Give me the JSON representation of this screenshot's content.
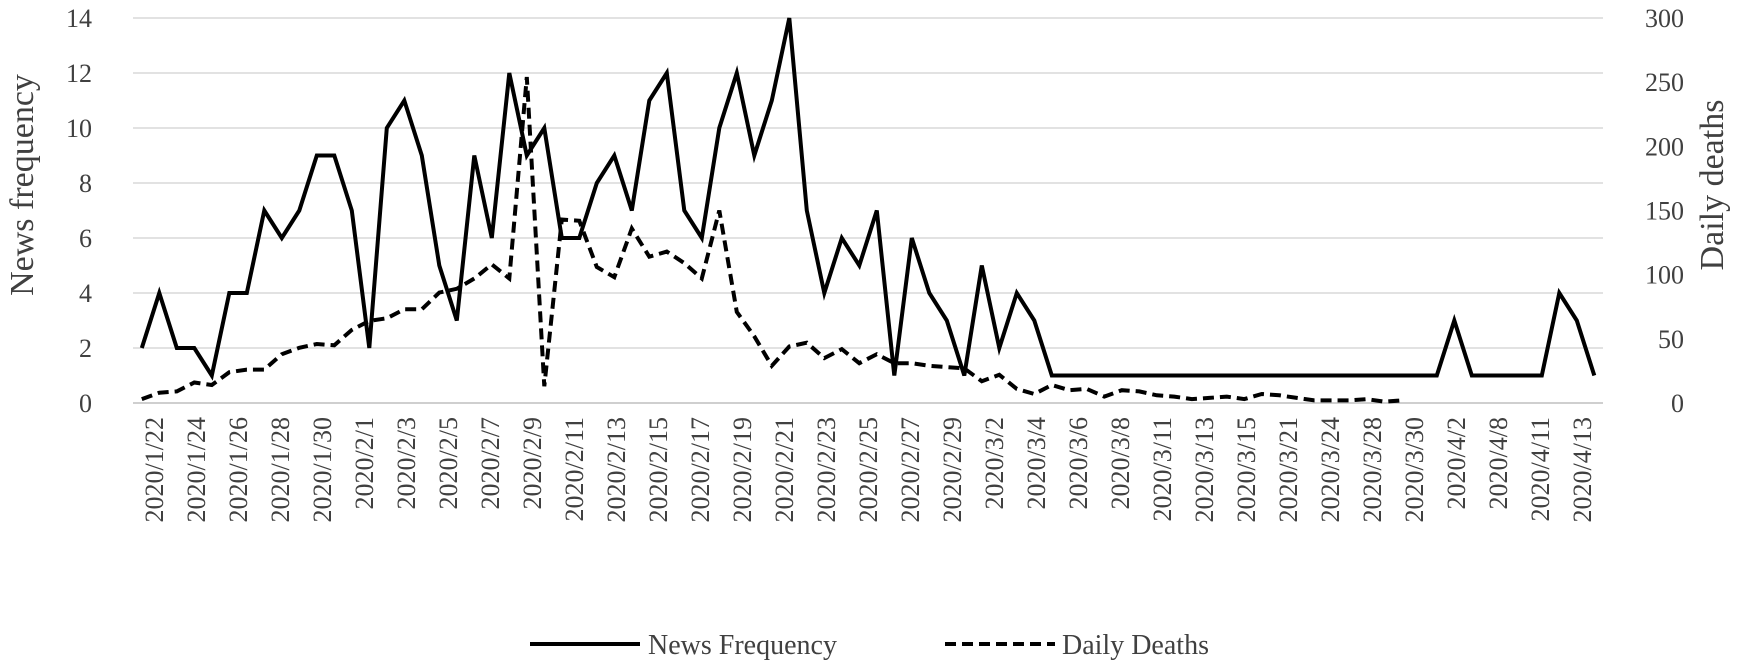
{
  "chart_data": {
    "type": "line",
    "ylabel_left": "News frequency",
    "ylabel_right": "Daily deaths",
    "ylim_left": [
      0,
      14
    ],
    "ylim_right": [
      0,
      300
    ],
    "yticks_left": [
      "0",
      "2",
      "4",
      "6",
      "8",
      "10",
      "12",
      "14"
    ],
    "yticks_right": [
      "0",
      "50",
      "100",
      "150",
      "200",
      "250",
      "300"
    ],
    "x_tick_labels": [
      "2020/1/22",
      "2020/1/24",
      "2020/1/26",
      "2020/1/28",
      "2020/1/30",
      "2020/2/1",
      "2020/2/3",
      "2020/2/5",
      "2020/2/7",
      "2020/2/9",
      "2020/2/11",
      "2020/2/13",
      "2020/2/15",
      "2020/2/17",
      "2020/2/19",
      "2020/2/21",
      "2020/2/23",
      "2020/2/25",
      "2020/2/27",
      "2020/2/29",
      "2020/3/2",
      "2020/3/4",
      "2020/3/6",
      "2020/3/8",
      "2020/3/11",
      "2020/3/13",
      "2020/3/15",
      "2020/3/21",
      "2020/3/24",
      "2020/3/28",
      "2020/3/30",
      "2020/4/2",
      "2020/4/8",
      "2020/4/11",
      "2020/4/13"
    ],
    "grid": true,
    "legend_position": "bottom",
    "series": [
      {
        "name": "News Frequency",
        "axis": "left",
        "style": "solid",
        "values": [
          2,
          4,
          2,
          2,
          1,
          4,
          4,
          7,
          6,
          7,
          9,
          9,
          7,
          2,
          10,
          11,
          9,
          5,
          3,
          9,
          6,
          12,
          9,
          10,
          6,
          6,
          8,
          9,
          7,
          11,
          12,
          7,
          6,
          10,
          12,
          9,
          11,
          14,
          7,
          4,
          6,
          5,
          7,
          1,
          6,
          4,
          3,
          1,
          5,
          2,
          4,
          3,
          1,
          1,
          1,
          1,
          1,
          1,
          1,
          1,
          1,
          1,
          1,
          1,
          1,
          1,
          1,
          1,
          1,
          1,
          1,
          1,
          1,
          1,
          1,
          3,
          1,
          1,
          1,
          1,
          1,
          4,
          3,
          1
        ]
      },
      {
        "name": "Daily Deaths",
        "axis": "right",
        "style": "dashed",
        "values": [
          3,
          8,
          9,
          16,
          14,
          24,
          26,
          26,
          38,
          43,
          46,
          45,
          57,
          64,
          66,
          73,
          73,
          86,
          89,
          97,
          108,
          97,
          254,
          13,
          143,
          142,
          106,
          98,
          136,
          114,
          118,
          109,
          97,
          150,
          71,
          52,
          29,
          44,
          47,
          35,
          42,
          31,
          38,
          31,
          31,
          29,
          28,
          27,
          17,
          22,
          11,
          7,
          14,
          10,
          11,
          5,
          10,
          9,
          6,
          5,
          3,
          4,
          5,
          3,
          7,
          6,
          4,
          2,
          2,
          2,
          3,
          1,
          2
        ]
      }
    ]
  }
}
